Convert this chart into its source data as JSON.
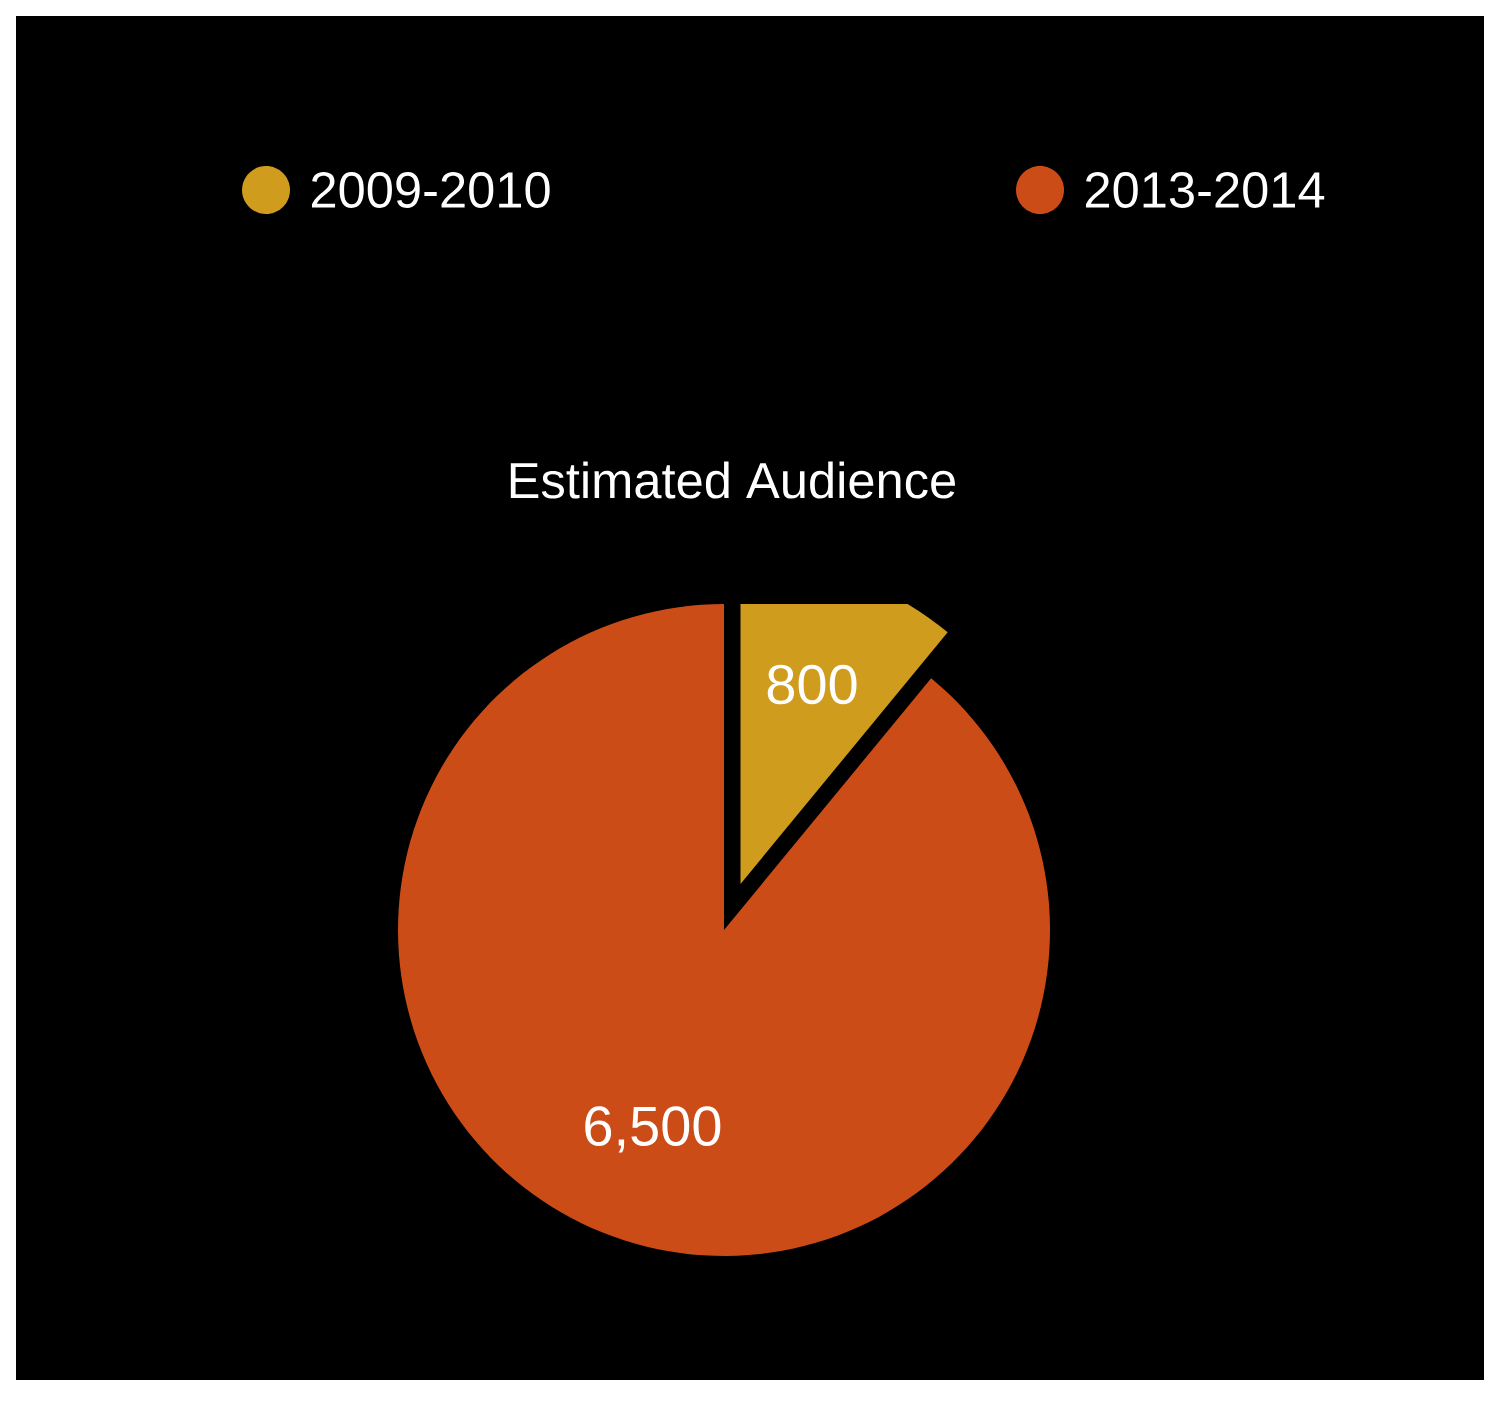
{
  "chart_data": {
    "type": "pie",
    "title": "Estimated Audience",
    "categories": [
      "2009-2010",
      "2013-2014"
    ],
    "values": [
      800,
      6500
    ],
    "colors": [
      "#d09c1e",
      "#cc4c18"
    ],
    "value_labels": [
      "800",
      "6,500"
    ],
    "legend": "top"
  }
}
